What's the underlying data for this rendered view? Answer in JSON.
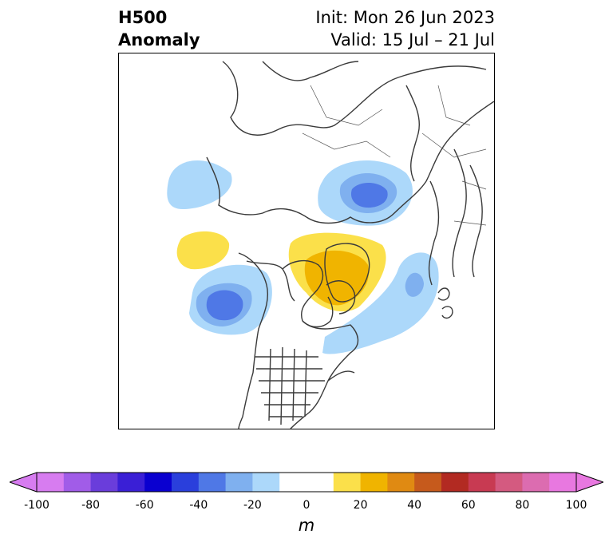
{
  "title": {
    "variable": "H500",
    "subtitle": "Anomaly",
    "init": "Init: Mon 26 Jun 2023",
    "valid": "Valid: 15 Jul – 21 Jul"
  },
  "colorbar": {
    "unit": "m",
    "tick_labels": [
      "-100",
      "-80",
      "-60",
      "-40",
      "-20",
      "0",
      "20",
      "40",
      "60",
      "80",
      "100"
    ],
    "colors": [
      "#d77cf0",
      "#a15ce8",
      "#6a3ddb",
      "#3a1fd6",
      "#0a00d0",
      "#2a3fdc",
      "#4f78e6",
      "#7fb0ef",
      "#acd8fa",
      "#ffffff",
      "#ffffff",
      "#fbe04a",
      "#f0b400",
      "#e08a12",
      "#c65a1c",
      "#b22a22",
      "#c83a52",
      "#d45a80",
      "#dc6cb0",
      "#e878e0"
    ],
    "extend": "both"
  },
  "map": {
    "projection": "north-polar-stereographic",
    "anomaly_features": [
      {
        "region": "NE Pacific / Gulf of Alaska",
        "sign": "negative",
        "peak_m": -50
      },
      {
        "region": "Greenland / Baffin Bay",
        "sign": "positive",
        "peak_m": 30
      },
      {
        "region": "Barents-Kara Sea / NW Russia",
        "sign": "negative",
        "peak_m": -50
      },
      {
        "region": "North Atlantic",
        "sign": "negative",
        "peak_m": -30
      },
      {
        "region": "Bering Sea",
        "sign": "positive",
        "peak_m": 20
      },
      {
        "region": "NE Siberia",
        "sign": "negative",
        "peak_m": -20
      }
    ]
  }
}
